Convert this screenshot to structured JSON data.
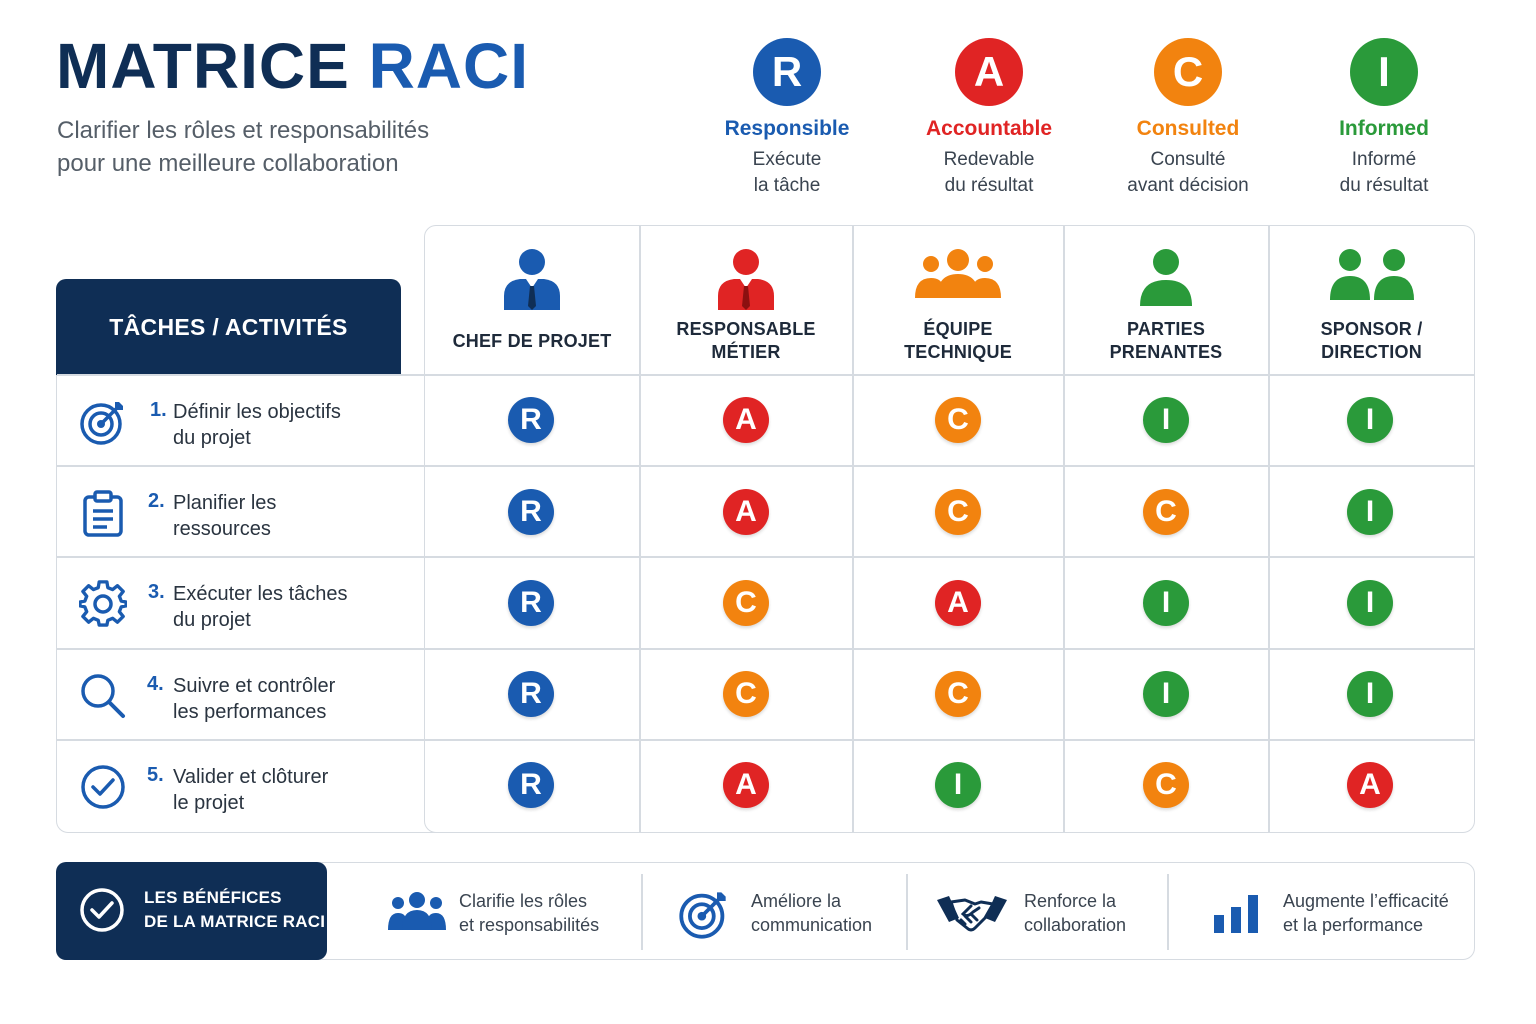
{
  "header": {
    "title_main": "MATRICE",
    "title_accent": "RACI",
    "subtitle_line1": "Clarifier les rôles et responsabilités",
    "subtitle_line2": "pour une meilleure collaboration"
  },
  "legend": [
    {
      "letter": "R",
      "name": "Responsible",
      "desc1": "Exécute",
      "desc2": "la tâche",
      "color": "#1a5bb0"
    },
    {
      "letter": "A",
      "name": "Accountable",
      "desc1": "Redevable",
      "desc2": "du résultat",
      "color": "#e02424"
    },
    {
      "letter": "C",
      "name": "Consulted",
      "desc1": "Consulté",
      "desc2": "avant décision",
      "color": "#f2830f"
    },
    {
      "letter": "I",
      "name": "Informed",
      "desc1": "Informé",
      "desc2": "du résultat",
      "color": "#2a9a3a"
    }
  ],
  "matrix": {
    "task_header": "TÂCHES / ACTIVITÉS",
    "columns": [
      {
        "line1": "CHEF DE PROJET",
        "line2": "",
        "icon": "manager-icon"
      },
      {
        "line1": "RESPONSABLE",
        "line2": "MÉTIER",
        "icon": "business-owner-icon"
      },
      {
        "line1": "ÉQUIPE",
        "line2": "TECHNIQUE",
        "icon": "team-icon"
      },
      {
        "line1": "PARTIES",
        "line2": "PRENANTES",
        "icon": "stakeholder-icon"
      },
      {
        "line1": "SPONSOR /",
        "line2": "DIRECTION",
        "icon": "sponsor-icon"
      }
    ],
    "tasks": [
      {
        "num": "1.",
        "line1": "Définir les objectifs",
        "line2": "du projet",
        "icon": "target-icon",
        "cells": [
          "R",
          "A",
          "C",
          "I",
          "I"
        ]
      },
      {
        "num": "2.",
        "line1": "Planifier les",
        "line2": "ressources",
        "icon": "clipboard-icon",
        "cells": [
          "R",
          "A",
          "C",
          "C",
          "I"
        ]
      },
      {
        "num": "3.",
        "line1": "Exécuter les tâches",
        "line2": "du projet",
        "icon": "gear-icon",
        "cells": [
          "R",
          "C",
          "A",
          "I",
          "I"
        ]
      },
      {
        "num": "4.",
        "line1": "Suivre et contrôler",
        "line2": "les performances",
        "icon": "search-icon",
        "cells": [
          "R",
          "C",
          "C",
          "I",
          "I"
        ]
      },
      {
        "num": "5.",
        "line1": "Valider et clôturer",
        "line2": "le projet",
        "icon": "check-circle-icon",
        "cells": [
          "R",
          "A",
          "I",
          "C",
          "A"
        ]
      }
    ]
  },
  "benefits": {
    "title_line1": "LES BÉNÉFICES",
    "title_line2": "DE LA MATRICE RACI",
    "items": [
      {
        "line1": "Clarifie les rôles",
        "line2": "et responsabilités",
        "icon": "people-icon"
      },
      {
        "line1": "Améliore la",
        "line2": "communication",
        "icon": "target-icon"
      },
      {
        "line1": "Renforce la",
        "line2": "collaboration",
        "icon": "handshake-icon"
      },
      {
        "line1": "Augmente l’efficacité",
        "line2": "et la performance",
        "icon": "bar-chart-icon"
      }
    ]
  },
  "colors": {
    "R": "#1a5bb0",
    "A": "#e02424",
    "C": "#f2830f",
    "I": "#2a9a3a",
    "navy": "#0f2e55"
  }
}
